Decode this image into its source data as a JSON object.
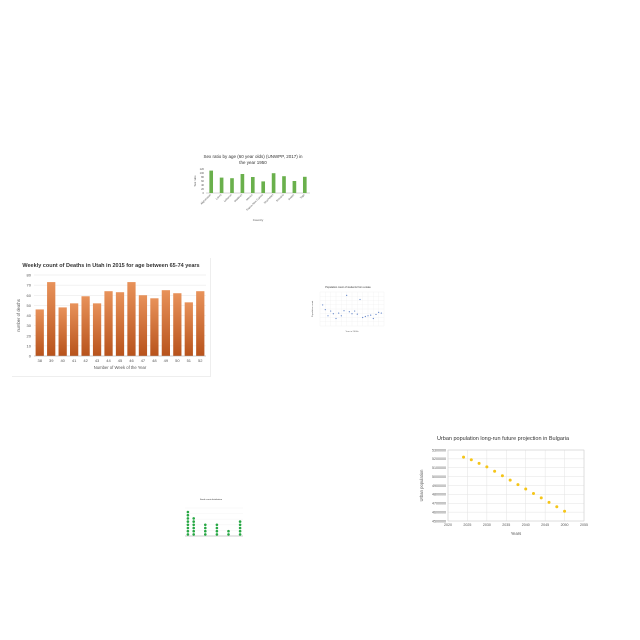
{
  "chart_data": [
    {
      "type": "bar",
      "title": "Sex ratio by age (60 year olds) (UNWPP, 2017) in the year 1950",
      "title_line1": "Sex ratio by age (60 year olds) (UNWPP, 2017) in",
      "title_line2": "the year 1950",
      "xlabel": "Country",
      "ylabel": "Sex ratio",
      "ylim": [
        0,
        120
      ],
      "yticks": [
        "0",
        "20",
        "40",
        "60",
        "80",
        "100",
        "120"
      ],
      "categories": [
        "Afghanistan",
        "Latvia",
        "Lebanon",
        "Maldives",
        "Mexico",
        "Papua New Guinea",
        "Seychelles",
        "Slovakia",
        "Sudan",
        "Togo"
      ],
      "values": [
        112,
        77,
        74,
        95,
        80,
        58,
        99,
        84,
        60,
        81
      ],
      "color": "#6ab04c"
    },
    {
      "type": "bar",
      "title": "Weekly count of Deaths in Utah in 2015 for age between 65-74 years",
      "xlabel": "Number of Week of the Year",
      "ylabel": "number of deaths",
      "ylim": [
        0,
        80
      ],
      "yticks": [
        "0",
        "10",
        "20",
        "30",
        "40",
        "50",
        "60",
        "70",
        "80"
      ],
      "categories": [
        "38",
        "39",
        "40",
        "41",
        "42",
        "43",
        "44",
        "45",
        "46",
        "47",
        "48",
        "49",
        "50",
        "51",
        "52"
      ],
      "values": [
        46,
        73,
        48,
        52,
        59,
        52,
        64,
        63,
        73,
        60,
        57,
        65,
        62,
        53,
        64
      ],
      "color": "#cd6a2c"
    },
    {
      "type": "scatter",
      "title": "Population count of students from a state",
      "xlabel": "Year in 2000s",
      "ylabel": "Population count",
      "x": [
        1,
        2,
        3,
        4,
        5,
        6,
        7,
        8,
        9,
        10,
        11,
        12,
        13,
        14,
        15,
        16,
        17,
        18,
        19,
        20,
        21,
        22,
        23
      ],
      "y": [
        62,
        48,
        30,
        44,
        36,
        22,
        38,
        30,
        45,
        90,
        42,
        36,
        44,
        35,
        78,
        25,
        28,
        30,
        32,
        22,
        34,
        40,
        38
      ],
      "ylim": [
        0,
        100
      ],
      "color": "#5b7fc7"
    },
    {
      "type": "scatter",
      "title": "Urban population long-run future projection in Bulgaria",
      "xlabel": "Years",
      "ylabel": "Urban population",
      "xlim": [
        2020,
        2055
      ],
      "ylim": [
        4500000,
        5300000
      ],
      "xticks": [
        "2020",
        "2025",
        "2030",
        "2035",
        "2040",
        "2045",
        "2050",
        "2055"
      ],
      "yticks": [
        "4500000",
        "4600000",
        "4700000",
        "4800000",
        "4900000",
        "5000000",
        "5100000",
        "5200000",
        "5300000"
      ],
      "x": [
        2024,
        2026,
        2028,
        2030,
        2032,
        2034,
        2036,
        2038,
        2040,
        2042,
        2044,
        2046,
        2048,
        2050
      ],
      "y": [
        5220000,
        5190000,
        5150000,
        5110000,
        5060000,
        5010000,
        4960000,
        4910000,
        4860000,
        4810000,
        4760000,
        4710000,
        4660000,
        4610000
      ],
      "color": "#f5c518"
    },
    {
      "type": "bar",
      "title": "Seed count distribution",
      "xlabel": "",
      "ylabel": "",
      "categories": [
        "1",
        "2",
        "3",
        "4",
        "5",
        "6",
        "7",
        "8",
        "9",
        "10"
      ],
      "values": [
        8,
        6,
        0,
        4,
        0,
        4,
        0,
        2,
        0,
        5
      ],
      "color": "#27a844"
    }
  ]
}
